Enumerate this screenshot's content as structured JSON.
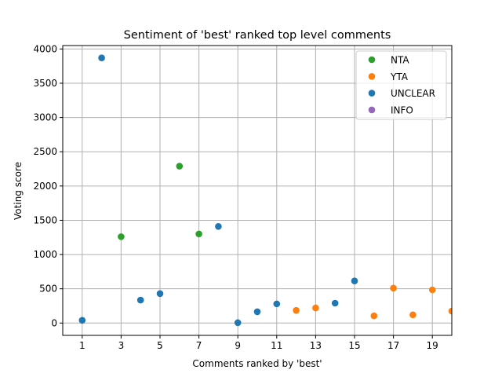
{
  "chart_data": {
    "type": "scatter",
    "title": "Sentiment of 'best' ranked top level comments",
    "xlabel": "Comments ranked by 'best'",
    "ylabel": "Voting score",
    "xlim": [
      0,
      20
    ],
    "ylim": [
      -180,
      4050
    ],
    "xticks": [
      1,
      3,
      5,
      7,
      9,
      11,
      13,
      15,
      17,
      19
    ],
    "yticks": [
      0,
      500,
      1000,
      1500,
      2000,
      2500,
      3000,
      3500,
      4000
    ],
    "grid": true,
    "legend_position": "top-right",
    "series": [
      {
        "name": "NTA",
        "color": "#2ca02c",
        "points": [
          [
            3,
            1260
          ],
          [
            6,
            2290
          ],
          [
            7,
            1300
          ]
        ]
      },
      {
        "name": "YTA",
        "color": "#ff7f0e",
        "points": [
          [
            12,
            185
          ],
          [
            13,
            220
          ],
          [
            16,
            105
          ],
          [
            17,
            510
          ],
          [
            18,
            120
          ],
          [
            19,
            485
          ],
          [
            20,
            175
          ]
        ]
      },
      {
        "name": "UNCLEAR",
        "color": "#1f77b4",
        "points": [
          [
            1,
            40
          ],
          [
            2,
            3870
          ],
          [
            4,
            335
          ],
          [
            5,
            430
          ],
          [
            8,
            1410
          ],
          [
            9,
            5
          ],
          [
            10,
            165
          ],
          [
            11,
            280
          ],
          [
            14,
            290
          ],
          [
            15,
            615
          ]
        ]
      },
      {
        "name": "INFO",
        "color": "#9467bd",
        "points": []
      }
    ]
  }
}
